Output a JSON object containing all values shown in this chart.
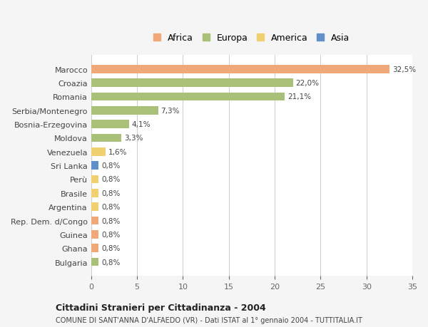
{
  "categories": [
    "Marocco",
    "Croazia",
    "Romania",
    "Serbia/Montenegro",
    "Bosnia-Erzegovina",
    "Moldova",
    "Venezuela",
    "Sri Lanka",
    "Perù",
    "Brasile",
    "Argentina",
    "Rep. Dem. d/Congo",
    "Guinea",
    "Ghana",
    "Bulgaria"
  ],
  "values": [
    32.5,
    22.0,
    21.1,
    7.3,
    4.1,
    3.3,
    1.6,
    0.8,
    0.8,
    0.8,
    0.8,
    0.8,
    0.8,
    0.8,
    0.8
  ],
  "labels": [
    "32,5%",
    "22,0%",
    "21,1%",
    "7,3%",
    "4,1%",
    "3,3%",
    "1,6%",
    "0,8%",
    "0,8%",
    "0,8%",
    "0,8%",
    "0,8%",
    "0,8%",
    "0,8%",
    "0,8%"
  ],
  "colors": [
    "#f0a878",
    "#a8c078",
    "#a8c078",
    "#a8c078",
    "#a8c078",
    "#a8c078",
    "#f0d070",
    "#6090c8",
    "#f0d070",
    "#f0d070",
    "#f0d070",
    "#f0a878",
    "#f0a878",
    "#f0a878",
    "#a8c078"
  ],
  "legend_labels": [
    "Africa",
    "Europa",
    "America",
    "Asia"
  ],
  "legend_colors": [
    "#f0a878",
    "#a8c078",
    "#f0d070",
    "#6090c8"
  ],
  "title1": "Cittadini Stranieri per Cittadinanza - 2004",
  "title2": "COMUNE DI SANT'ANNA D'ALFAEDO (VR) - Dati ISTAT al 1° gennaio 2004 - TUTTITALIA.IT",
  "xlim": [
    0,
    35
  ],
  "xticks": [
    0,
    5,
    10,
    15,
    20,
    25,
    30,
    35
  ],
  "background_color": "#f5f5f5",
  "plot_background": "#ffffff",
  "grid_color": "#cccccc"
}
